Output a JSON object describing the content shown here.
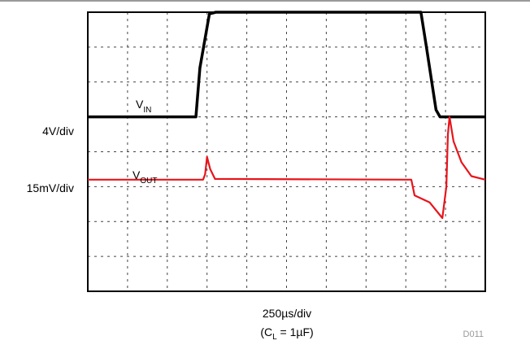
{
  "chart_data": {
    "type": "line",
    "title": "",
    "x_scale_label": "250µs/div",
    "condition": {
      "prefix": "(C",
      "subscript": "L",
      "suffix": " = 1µF)"
    },
    "figure_code": "D011",
    "grid": true,
    "x_divisions": 10,
    "y_divisions": 8,
    "series": [
      {
        "name": "V",
        "name_sub": "IN",
        "scale_label": "4V/div",
        "color": "#000000",
        "x_div": [
          0,
          2.72,
          2.82,
          3.06,
          3.22,
          8.38,
          8.52,
          8.76,
          8.86,
          10
        ],
        "y_div": [
          5.0,
          5.0,
          6.4,
          7.95,
          8.0,
          8.0,
          7.0,
          5.2,
          5.0,
          5.0
        ]
      },
      {
        "name": "V",
        "name_sub": "OUT",
        "scale_label": "15mV/div",
        "color": "#e8141b",
        "x_div": [
          0,
          2.9,
          2.95,
          3.0,
          3.08,
          3.2,
          8.14,
          8.22,
          8.6,
          8.92,
          9.02,
          9.06,
          9.1,
          9.2,
          9.4,
          9.65,
          10
        ],
        "y_div": [
          3.2,
          3.2,
          3.35,
          3.85,
          3.5,
          3.22,
          3.2,
          2.75,
          2.55,
          2.1,
          3.0,
          4.5,
          5.0,
          4.3,
          3.7,
          3.3,
          3.2
        ]
      }
    ]
  }
}
